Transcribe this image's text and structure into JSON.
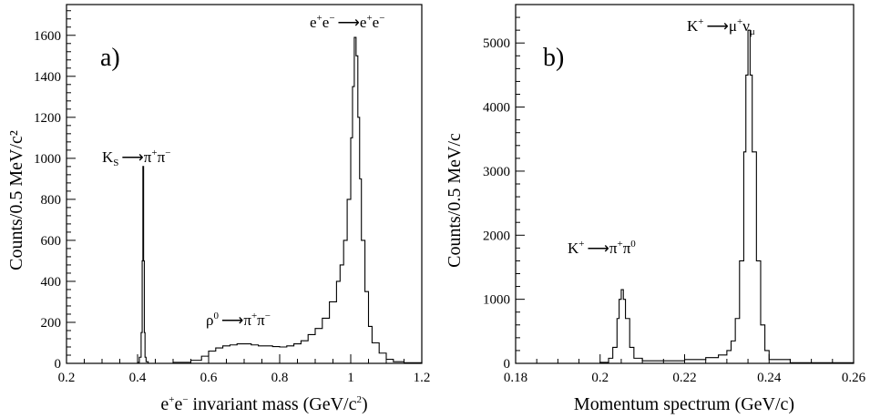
{
  "chart_data": [
    {
      "type": "line",
      "panel_label": "a)",
      "xlabel": {
        "base": "e",
        "sup1": "+",
        "mid": "e",
        "sup2": "−",
        "rest": " invariant mass (GeV/c",
        "sup3": "2",
        "end": ")"
      },
      "ylabel": "Counts/0.5 MeV/c²",
      "xlim": [
        0.2,
        1.2
      ],
      "ylim": [
        0,
        1750
      ],
      "x_ticks": [
        0.2,
        0.4,
        0.6,
        0.8,
        1.0,
        1.2
      ],
      "x_tick_labels": [
        "0.2",
        "0.4",
        "0.6",
        "0.8",
        "1",
        "1.2"
      ],
      "y_ticks": [
        0,
        200,
        400,
        600,
        800,
        1000,
        1200,
        1400,
        1600
      ],
      "y_tick_labels": [
        "0",
        "200",
        "400",
        "600",
        "800",
        "1000",
        "1200",
        "1400",
        "1600"
      ],
      "grid": false,
      "series": [
        {
          "x": [
            0.2,
            0.39,
            0.4,
            0.405,
            0.41,
            0.413,
            0.415,
            0.417,
            0.419,
            0.421,
            0.424,
            0.43,
            0.44,
            0.5,
            0.55,
            0.58,
            0.6,
            0.62,
            0.64,
            0.66,
            0.68,
            0.7,
            0.72,
            0.74,
            0.76,
            0.78,
            0.8,
            0.82,
            0.84,
            0.86,
            0.88,
            0.9,
            0.92,
            0.94,
            0.96,
            0.97,
            0.98,
            0.99,
            1.0,
            1.005,
            1.01,
            1.015,
            1.02,
            1.025,
            1.03,
            1.04,
            1.05,
            1.06,
            1.08,
            1.1,
            1.12,
            1.15,
            1.2
          ],
          "y": [
            0,
            0,
            5,
            30,
            150,
            500,
            960,
            500,
            150,
            30,
            8,
            0,
            0,
            5,
            15,
            35,
            60,
            75,
            85,
            90,
            95,
            95,
            90,
            85,
            85,
            82,
            80,
            85,
            95,
            110,
            140,
            170,
            220,
            300,
            400,
            480,
            600,
            800,
            1100,
            1350,
            1590,
            1500,
            1200,
            900,
            600,
            350,
            180,
            100,
            50,
            20,
            8,
            3,
            0
          ]
        }
      ],
      "annotations": [
        {
          "text_main": "K",
          "text_sub": "S",
          "arrow": "⟶",
          "text_after": "π",
          "sup_a": "+",
          "text_after2": "π",
          "sup_b": "−"
        },
        {
          "text_main": "ρ",
          "sup_main": "0",
          "arrow": "⟶",
          "text_after": "π",
          "sup_a": "+",
          "text_after2": "π",
          "sup_b": "−"
        },
        {
          "text_main": "e",
          "sup_main": "+",
          "text_main2": "e",
          "sup_main2": "−",
          "arrow": "⟶",
          "text_after": "e",
          "sup_a": "+",
          "text_after2": "e",
          "sup_b": "−"
        }
      ]
    },
    {
      "type": "line",
      "panel_label": "b)",
      "xlabel": "Momentum spectrum (GeV/c)",
      "ylabel": "Counts/0.5 MeV/c",
      "xlim": [
        0.18,
        0.26
      ],
      "ylim": [
        0,
        5600
      ],
      "x_ticks": [
        0.18,
        0.2,
        0.22,
        0.24,
        0.26
      ],
      "x_tick_labels": [
        "0.18",
        "0.2",
        "0.22",
        "0.24",
        "0.26"
      ],
      "y_ticks": [
        0,
        1000,
        2000,
        3000,
        4000,
        5000
      ],
      "y_tick_labels": [
        "0",
        "1000",
        "2000",
        "3000",
        "4000",
        "5000"
      ],
      "grid": false,
      "series": [
        {
          "x": [
            0.18,
            0.195,
            0.2,
            0.202,
            0.203,
            0.204,
            0.2045,
            0.205,
            0.2055,
            0.206,
            0.207,
            0.208,
            0.21,
            0.215,
            0.22,
            0.225,
            0.228,
            0.23,
            0.231,
            0.232,
            0.233,
            0.234,
            0.2345,
            0.235,
            0.2355,
            0.236,
            0.237,
            0.238,
            0.239,
            0.24,
            0.245,
            0.26
          ],
          "y": [
            0,
            0,
            15,
            80,
            250,
            700,
            1000,
            1150,
            1000,
            700,
            250,
            80,
            40,
            40,
            60,
            90,
            130,
            200,
            350,
            700,
            1600,
            3300,
            4500,
            5200,
            4500,
            3300,
            1600,
            600,
            200,
            60,
            10,
            0
          ]
        }
      ],
      "annotations": [
        {
          "text_main": "K",
          "sup_main": "+",
          "arrow": "⟶",
          "text_after": "μ",
          "sup_a": "+",
          "text_after2": "ν",
          "sub_b": "μ"
        },
        {
          "text_main": "K",
          "sup_main": "+",
          "arrow": "⟶",
          "text_after": "π",
          "sup_a": "+",
          "text_after2": "π",
          "sup_b": "0"
        }
      ]
    }
  ]
}
